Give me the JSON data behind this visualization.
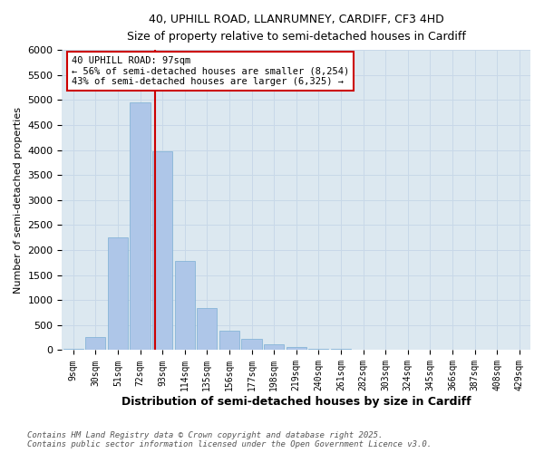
{
  "title1": "40, UPHILL ROAD, LLANRUMNEY, CARDIFF, CF3 4HD",
  "title2": "Size of property relative to semi-detached houses in Cardiff",
  "xlabel": "Distribution of semi-detached houses by size in Cardiff",
  "ylabel": "Number of semi-detached properties",
  "categories": [
    "9sqm",
    "30sqm",
    "51sqm",
    "72sqm",
    "93sqm",
    "114sqm",
    "135sqm",
    "156sqm",
    "177sqm",
    "198sqm",
    "219sqm",
    "240sqm",
    "261sqm",
    "282sqm",
    "303sqm",
    "324sqm",
    "345sqm",
    "366sqm",
    "387sqm",
    "408sqm",
    "429sqm"
  ],
  "values": [
    30,
    255,
    2250,
    4950,
    3970,
    1780,
    840,
    390,
    230,
    110,
    60,
    35,
    20,
    10,
    8,
    5,
    3,
    2,
    1,
    1,
    0
  ],
  "bar_color": "#aec6e8",
  "bar_edge_color": "#7bafd4",
  "red_line_color": "#cc0000",
  "annotation_line1": "40 UPHILL ROAD: 97sqm",
  "annotation_line2": "← 56% of semi-detached houses are smaller (8,254)",
  "annotation_line3": "43% of semi-detached houses are larger (6,325) →",
  "annotation_box_color": "#ffffff",
  "annotation_box_edge": "#cc0000",
  "grid_color": "#c8d8e8",
  "background_color": "#dce8f0",
  "ylim": [
    0,
    6000
  ],
  "yticks": [
    0,
    500,
    1000,
    1500,
    2000,
    2500,
    3000,
    3500,
    4000,
    4500,
    5000,
    5500,
    6000
  ],
  "footnote1": "Contains HM Land Registry data © Crown copyright and database right 2025.",
  "footnote2": "Contains public sector information licensed under the Open Government Licence v3.0.",
  "red_line_x": 3.69
}
